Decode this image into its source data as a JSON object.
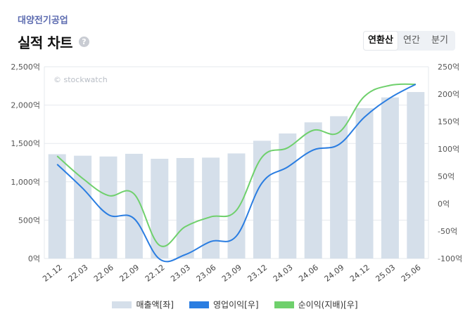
{
  "header": {
    "company": "대양전기공업",
    "title": "실적 차트",
    "help_label": "?"
  },
  "tabs": [
    {
      "label": "연환산",
      "active": true
    },
    {
      "label": "연간",
      "active": false
    },
    {
      "label": "분기",
      "active": false
    }
  ],
  "chart_data": {
    "type": "bar+line",
    "watermark": "© stockwatch",
    "categories": [
      "21.12",
      "22.03",
      "22.06",
      "22.09",
      "22.12",
      "23.03",
      "23.06",
      "23.09",
      "23.12",
      "24.03",
      "24.06",
      "24.09",
      "24.12",
      "25.03",
      "25.06"
    ],
    "left_axis": {
      "min": 0,
      "max": 2500,
      "ticks": [
        0,
        500,
        1000,
        1500,
        2000,
        2500
      ],
      "tick_labels": [
        "0억",
        "500억",
        "1,000억",
        "1,500억",
        "2,000억",
        "2,500억"
      ]
    },
    "right_axis": {
      "min": -100,
      "max": 250,
      "ticks": [
        -100,
        -50,
        0,
        50,
        100,
        150,
        200,
        250
      ],
      "tick_labels": [
        "-100억",
        "-50억",
        "0억",
        "50억",
        "100억",
        "150억",
        "200억",
        "250억"
      ]
    },
    "series": [
      {
        "name": "매출액[좌]",
        "type": "bar",
        "axis": "left",
        "color": "#d5dfea",
        "values": [
          1360,
          1340,
          1330,
          1365,
          1300,
          1310,
          1315,
          1370,
          1535,
          1630,
          1775,
          1855,
          1960,
          2100,
          2170
        ]
      },
      {
        "name": "영업이익[우]",
        "type": "line",
        "axis": "right",
        "color": "#2a7de1",
        "values": [
          72,
          28,
          -20,
          -27,
          -101,
          -93,
          -69,
          -59,
          38,
          67,
          98,
          108,
          158,
          193,
          218
        ]
      },
      {
        "name": "순이익(지배)[우]",
        "type": "line",
        "axis": "right",
        "color": "#6fd06c",
        "values": [
          87,
          46,
          15,
          18,
          -76,
          -42,
          -24,
          -12,
          85,
          102,
          134,
          130,
          196,
          216,
          218
        ]
      }
    ]
  }
}
